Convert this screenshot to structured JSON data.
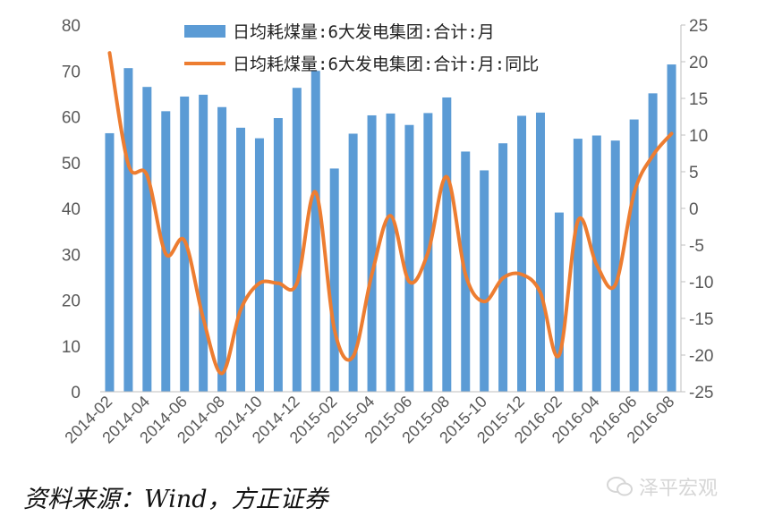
{
  "chart_data": {
    "type": "bar+line",
    "legend": [
      "日均耗煤量:6大发电集团:合计:月",
      "日均耗煤量:6大发电集团:合计:月:同比"
    ],
    "x": [
      "2014-02",
      "2014-03",
      "2014-04",
      "2014-05",
      "2014-06",
      "2014-07",
      "2014-08",
      "2014-09",
      "2014-10",
      "2014-11",
      "2014-12",
      "2015-01",
      "2015-02",
      "2015-03",
      "2015-04",
      "2015-05",
      "2015-06",
      "2015-07",
      "2015-08",
      "2015-09",
      "2015-10",
      "2015-11",
      "2015-12",
      "2016-01",
      "2016-02",
      "2016-03",
      "2016-04",
      "2016-05",
      "2016-06",
      "2016-07",
      "2016-08"
    ],
    "x_tick_labels": [
      "2014-02",
      "2014-04",
      "2014-06",
      "2014-08",
      "2014-10",
      "2014-12",
      "2015-02",
      "2015-04",
      "2015-06",
      "2015-08",
      "2015-10",
      "2015-12",
      "2016-02",
      "2016-04",
      "2016-06",
      "2016-08"
    ],
    "series": [
      {
        "name": "日均耗煤量:6大发电集团:合计:月",
        "type": "bar",
        "axis": "left",
        "values": [
          56.4,
          70.6,
          66.5,
          61.2,
          64.4,
          64.8,
          62.1,
          57.6,
          55.3,
          59.7,
          66.3,
          70.0,
          48.7,
          56.3,
          60.3,
          60.7,
          58.2,
          60.8,
          64.2,
          52.4,
          48.3,
          54.2,
          60.2,
          60.9,
          39.1,
          55.2,
          55.9,
          54.8,
          59.4,
          65.1,
          71.4
        ]
      },
      {
        "name": "日均耗煤量:6大发电集团:合计:月:同比",
        "type": "line",
        "axis": "right",
        "values": [
          21.2,
          6.0,
          4.5,
          -6.2,
          -4.4,
          -15.0,
          -22.5,
          -13.8,
          -10.2,
          -10.2,
          -10.2,
          2.2,
          -16.5,
          -20.2,
          -9.0,
          -1.0,
          -10.0,
          -6.0,
          4.3,
          -9.0,
          -12.7,
          -9.5,
          -9.0,
          -11.5,
          -20.0,
          -1.7,
          -7.7,
          -10.4,
          2.1,
          7.2,
          10.2
        ]
      }
    ],
    "ylim_left": [
      0,
      80
    ],
    "yticks_left": [
      0,
      10,
      20,
      30,
      40,
      50,
      60,
      70,
      80
    ],
    "ylim_right": [
      -25,
      25
    ],
    "yticks_right": [
      -25,
      -20,
      -15,
      -10,
      -5,
      0,
      5,
      10,
      15,
      20,
      25
    ],
    "bar_color": "#5B9BD5",
    "line_color": "#ED7D31",
    "grid": false,
    "legend_position": "top"
  },
  "footer": {
    "source": "资料来源：Wind，方正证券",
    "watermark": "泽平宏观"
  }
}
